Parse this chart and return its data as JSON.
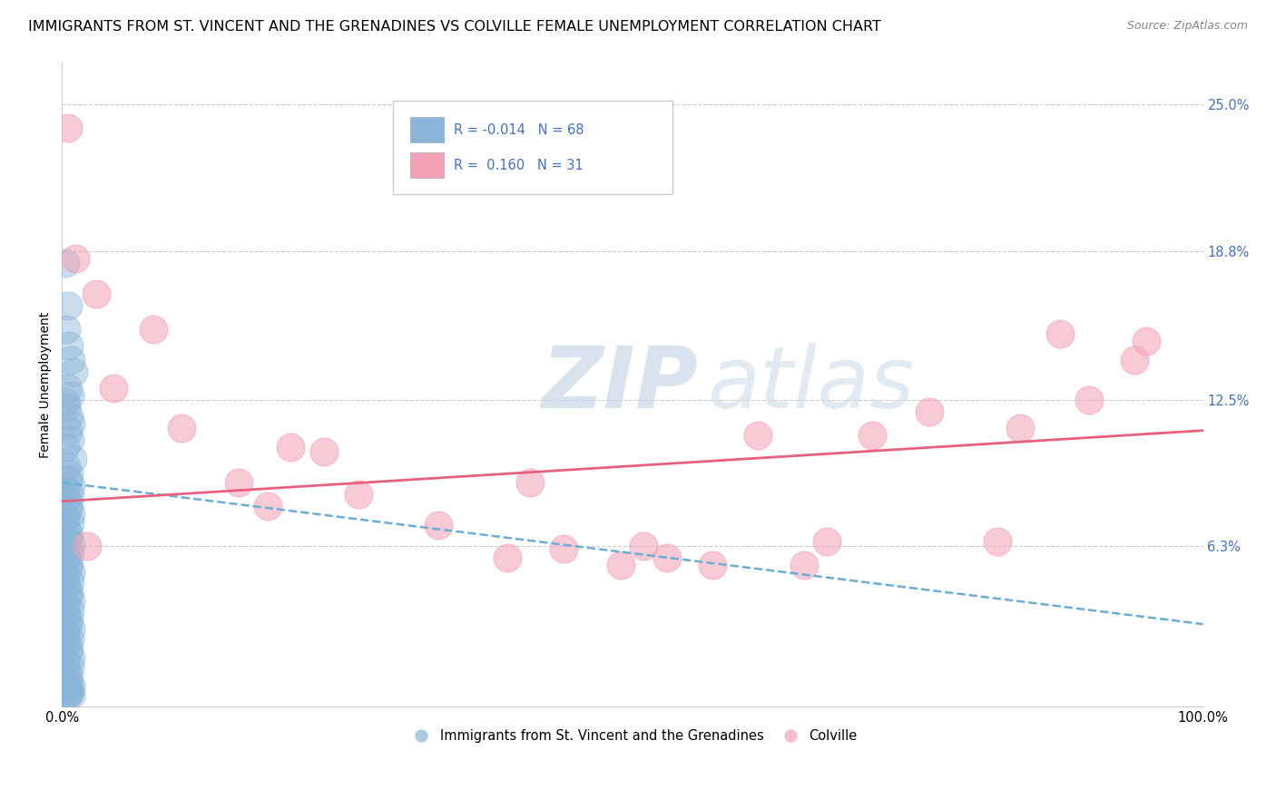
{
  "title": "IMMIGRANTS FROM ST. VINCENT AND THE GRENADINES VS COLVILLE FEMALE UNEMPLOYMENT CORRELATION CHART",
  "source": "Source: ZipAtlas.com",
  "ylabel": "Female Unemployment",
  "xlim": [
    0.0,
    1.0
  ],
  "ylim": [
    -0.005,
    0.268
  ],
  "yticks": [
    0.063,
    0.125,
    0.188,
    0.25
  ],
  "ytick_labels": [
    "6.3%",
    "12.5%",
    "18.8%",
    "25.0%"
  ],
  "xticks": [
    0.0,
    1.0
  ],
  "xtick_labels": [
    "0.0%",
    "100.0%"
  ],
  "blue_R": "-0.014",
  "blue_N": "68",
  "pink_R": "0.160",
  "pink_N": "31",
  "blue_color": "#8ab4d8",
  "pink_color": "#f2a0b5",
  "blue_scatter_x": [
    0.003,
    0.005,
    0.004,
    0.006,
    0.008,
    0.01,
    0.005,
    0.007,
    0.003,
    0.004,
    0.006,
    0.008,
    0.005,
    0.007,
    0.003,
    0.009,
    0.004,
    0.006,
    0.005,
    0.008,
    0.003,
    0.007,
    0.004,
    0.006,
    0.005,
    0.008,
    0.003,
    0.007,
    0.004,
    0.006,
    0.005,
    0.008,
    0.003,
    0.007,
    0.004,
    0.006,
    0.005,
    0.008,
    0.003,
    0.007,
    0.004,
    0.006,
    0.005,
    0.008,
    0.003,
    0.007,
    0.004,
    0.006,
    0.005,
    0.008,
    0.003,
    0.007,
    0.004,
    0.006,
    0.005,
    0.008,
    0.003,
    0.007,
    0.004,
    0.006,
    0.005,
    0.008,
    0.003,
    0.007,
    0.004,
    0.006,
    0.005,
    0.008
  ],
  "blue_scatter_y": [
    0.183,
    0.165,
    0.155,
    0.148,
    0.142,
    0.137,
    0.13,
    0.127,
    0.124,
    0.122,
    0.118,
    0.115,
    0.112,
    0.108,
    0.105,
    0.1,
    0.097,
    0.094,
    0.091,
    0.089,
    0.087,
    0.085,
    0.083,
    0.081,
    0.079,
    0.077,
    0.075,
    0.073,
    0.07,
    0.068,
    0.066,
    0.064,
    0.062,
    0.06,
    0.058,
    0.056,
    0.054,
    0.052,
    0.05,
    0.048,
    0.046,
    0.044,
    0.042,
    0.04,
    0.038,
    0.036,
    0.034,
    0.032,
    0.03,
    0.028,
    0.026,
    0.024,
    0.022,
    0.02,
    0.018,
    0.016,
    0.014,
    0.012,
    0.01,
    0.008,
    0.006,
    0.004,
    0.003,
    0.002,
    0.001,
    0.001,
    0.0,
    0.0
  ],
  "pink_scatter_x": [
    0.005,
    0.012,
    0.03,
    0.045,
    0.08,
    0.105,
    0.155,
    0.18,
    0.2,
    0.23,
    0.26,
    0.33,
    0.39,
    0.41,
    0.44,
    0.49,
    0.51,
    0.53,
    0.57,
    0.61,
    0.65,
    0.67,
    0.71,
    0.76,
    0.82,
    0.84,
    0.875,
    0.9,
    0.94,
    0.95,
    0.022
  ],
  "pink_scatter_y": [
    0.24,
    0.185,
    0.17,
    0.13,
    0.155,
    0.113,
    0.09,
    0.08,
    0.105,
    0.103,
    0.085,
    0.072,
    0.058,
    0.09,
    0.062,
    0.055,
    0.063,
    0.058,
    0.055,
    0.11,
    0.055,
    0.065,
    0.11,
    0.12,
    0.065,
    0.113,
    0.153,
    0.125,
    0.142,
    0.15,
    0.063
  ],
  "blue_trend_y_start": 0.09,
  "blue_trend_y_end": 0.03,
  "pink_trend_y_start": 0.082,
  "pink_trend_y_end": 0.112,
  "watermark_zip": "ZIP",
  "watermark_atlas": "atlas",
  "title_fontsize": 11.5,
  "axis_label_fontsize": 10,
  "tick_fontsize": 10.5
}
